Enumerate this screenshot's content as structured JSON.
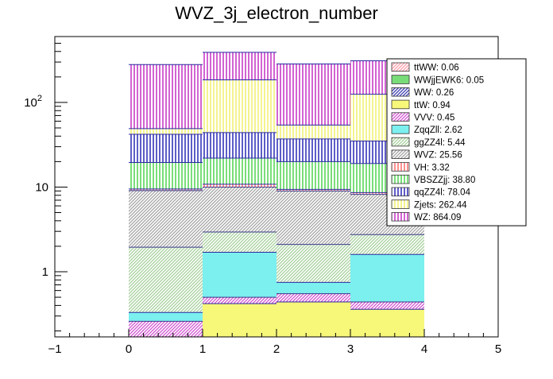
{
  "chart_data": {
    "type": "bar",
    "title": "WVZ_3j_electron_number",
    "xlabel": "",
    "ylabel": "",
    "x_scale": "linear",
    "y_scale": "log",
    "xlim": [
      -1,
      5
    ],
    "ylim": [
      0.17,
      600
    ],
    "x_ticks": [
      "−1",
      "0",
      "1",
      "2",
      "3",
      "4",
      "5"
    ],
    "x_tick_values": [
      -1,
      0,
      1,
      2,
      3,
      4,
      5
    ],
    "y_ticks": [
      {
        "value": 1,
        "label": "1",
        "exp": ""
      },
      {
        "value": 10,
        "label": "10",
        "exp": ""
      },
      {
        "value": 100,
        "label": "10",
        "exp": "2"
      }
    ],
    "bins": [
      [
        0,
        1
      ],
      [
        1,
        2
      ],
      [
        2,
        3
      ],
      [
        3,
        4
      ]
    ],
    "stacked": true,
    "series": [
      {
        "name": "ttWW",
        "legend": "ttWW: 0.06",
        "color": "#ff9aa6",
        "hatch": "diag",
        "cumulative": [
          0.17,
          0.17,
          0.17,
          0.17
        ]
      },
      {
        "name": "WWjjEWK6",
        "legend": "WWjjEWK6: 0.05",
        "color": "#78dc78",
        "hatch": "solid",
        "cumulative": [
          0.17,
          0.17,
          0.17,
          0.17
        ]
      },
      {
        "name": "WW",
        "legend": "WW: 0.26",
        "color": "#3838b0",
        "hatch": "diag",
        "cumulative": [
          0.17,
          0.17,
          0.17,
          0.17
        ]
      },
      {
        "name": "ttW",
        "legend": "ttW: 0.94",
        "color": "#f7f77a",
        "hatch": "solid",
        "cumulative": [
          0.17,
          0.42,
          0.44,
          0.36
        ]
      },
      {
        "name": "VVV",
        "legend": "VVV: 0.45",
        "color": "#d050d0",
        "hatch": "diag",
        "cumulative": [
          0.26,
          0.5,
          0.55,
          0.44
        ]
      },
      {
        "name": "ZqqZll",
        "legend": "ZqqZll: 2.62",
        "color": "#7cefef",
        "hatch": "solid",
        "cumulative": [
          0.33,
          1.7,
          0.75,
          1.6
        ]
      },
      {
        "name": "ggZZ4l",
        "legend": "ggZZ4l: 5.44",
        "color": "#a4d09a",
        "hatch": "diag",
        "cumulative": [
          1.95,
          2.95,
          2.1,
          2.75
        ]
      },
      {
        "name": "WVZ",
        "legend": "WVZ: 25.56",
        "color": "#a3a3a3",
        "hatch": "diag",
        "cumulative": [
          9.1,
          10.0,
          9.0,
          8.2
        ]
      },
      {
        "name": "VH",
        "legend": "VH: 3.32",
        "color": "#ff6060",
        "hatch": "vert",
        "cumulative": [
          9.5,
          10.8,
          9.4,
          8.6
        ]
      },
      {
        "name": "VBSZZjj",
        "legend": "VBSZZjj: 38.80",
        "color": "#40d040",
        "hatch": "vert",
        "cumulative": [
          19.5,
          22.0,
          20.0,
          19.0
        ]
      },
      {
        "name": "qqZZ4l",
        "legend": "qqZZ4l: 78.04",
        "color": "#1818b0",
        "hatch": "vert",
        "cumulative": [
          42.0,
          44.0,
          37.0,
          35.0
        ]
      },
      {
        "name": "Zjets",
        "legend": "Zjets: 262.44",
        "color": "#f0f060",
        "hatch": "vert",
        "cumulative": [
          49.0,
          185.0,
          54.0,
          125.0
        ]
      },
      {
        "name": "WZ",
        "legend": "WZ: 864.09",
        "color": "#c020c0",
        "hatch": "vert",
        "cumulative": [
          280.0,
          390.0,
          285.0,
          310.0
        ]
      }
    ]
  }
}
